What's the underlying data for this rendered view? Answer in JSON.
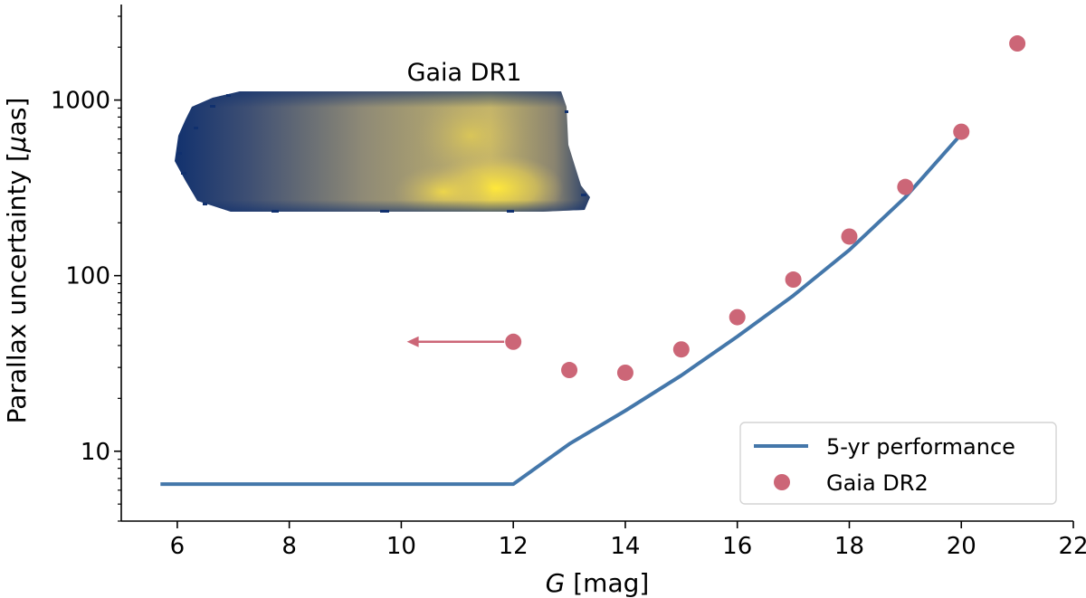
{
  "chart_data": {
    "type": "line",
    "title": "",
    "xlabel_italic": "G",
    "xlabel_rest": " [mag]",
    "ylabel_pre": "Parallax uncertainty [",
    "ylabel_mu": "μ",
    "ylabel_post": "as]",
    "xlim": [
      5,
      22
    ],
    "ylim": [
      4,
      3500
    ],
    "yscale": "log",
    "x_ticks": [
      6,
      8,
      10,
      12,
      14,
      16,
      18,
      20,
      22
    ],
    "x_tick_labels": [
      "6",
      "8",
      "10",
      "12",
      "14",
      "16",
      "18",
      "20",
      "22"
    ],
    "y_ticks": [
      10,
      100,
      1000
    ],
    "y_tick_labels": [
      "10",
      "100",
      "1000"
    ],
    "series": [
      {
        "name": "5-yr performance",
        "kind": "line",
        "color": "#4477aa",
        "x": [
          5.7,
          12,
          13,
          14,
          15,
          16,
          17,
          18,
          19,
          20
        ],
        "y": [
          6.5,
          6.5,
          11,
          17,
          27,
          45,
          77,
          140,
          280,
          640
        ]
      },
      {
        "name": "Gaia DR2",
        "kind": "scatter",
        "color": "#cc6677",
        "x": [
          12,
          13,
          14,
          15,
          16,
          17,
          18,
          19,
          20,
          21
        ],
        "y": [
          42,
          29,
          28,
          38,
          58,
          95,
          167,
          320,
          660,
          2100
        ]
      }
    ],
    "annotations": {
      "density_label": "Gaia DR1",
      "density_region": {
        "x": [
          7.0,
          13.3
        ],
        "y": [
          220,
          1000
        ]
      },
      "arrow": {
        "x_from": 12,
        "x_to": 10.1,
        "y": 42,
        "color": "#cc6677"
      }
    },
    "legend": {
      "position": "lower-right",
      "entries": [
        "5-yr performance",
        "Gaia DR2"
      ]
    },
    "colors": {
      "line": "#4477aa",
      "points": "#cc6677",
      "density_low": "#10306e",
      "density_high": "#f5e33a"
    }
  }
}
